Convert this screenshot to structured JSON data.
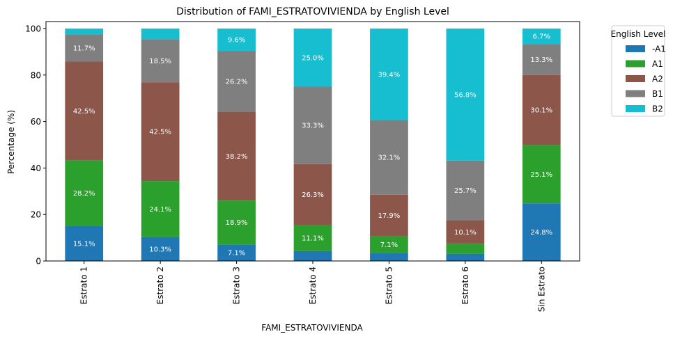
{
  "chart_data": {
    "type": "bar",
    "stacked": true,
    "title": "Distribution of FAMI_ESTRATOVIVIENDA by English Level",
    "xlabel": "FAMI_ESTRATOVIVIENDA",
    "ylabel": "Percentage (%)",
    "ylim": [
      0,
      103
    ],
    "yticks": [
      "0",
      "20",
      "40",
      "60",
      "80",
      "100"
    ],
    "categories": [
      "Estrato 1",
      "Estrato 2",
      "Estrato 3",
      "Estrato 4",
      "Estrato 5",
      "Estrato 6",
      "Sin Estrato"
    ],
    "legend_title": "English Level",
    "legend_position": "outside-right-top",
    "series": [
      {
        "name": "-A1",
        "color": "#1f77b4",
        "values": [
          15.1,
          10.3,
          7.1,
          4.3,
          3.5,
          3.1,
          24.8
        ],
        "labels": [
          "15.1%",
          "10.3%",
          "7.1%",
          "",
          "",
          "",
          "24.8%"
        ]
      },
      {
        "name": "A1",
        "color": "#2ca02c",
        "values": [
          28.2,
          24.1,
          18.9,
          11.1,
          7.1,
          4.3,
          25.1
        ],
        "labels": [
          "28.2%",
          "24.1%",
          "18.9%",
          "11.1%",
          "7.1%",
          "",
          "25.1%"
        ]
      },
      {
        "name": "A2",
        "color": "#8c564b",
        "values": [
          42.5,
          42.5,
          38.2,
          26.3,
          17.9,
          10.1,
          30.1
        ],
        "labels": [
          "42.5%",
          "42.5%",
          "38.2%",
          "26.3%",
          "17.9%",
          "10.1%",
          "30.1%"
        ]
      },
      {
        "name": "B1",
        "color": "#7f7f7f",
        "values": [
          11.7,
          18.5,
          26.2,
          33.3,
          32.1,
          25.7,
          13.3
        ],
        "labels": [
          "11.7%",
          "18.5%",
          "26.2%",
          "33.3%",
          "32.1%",
          "25.7%",
          "13.3%"
        ]
      },
      {
        "name": "B2",
        "color": "#17becf",
        "values": [
          2.5,
          4.6,
          9.6,
          25.0,
          39.4,
          56.8,
          6.7
        ],
        "labels": [
          "",
          "",
          "9.6%",
          "25.0%",
          "39.4%",
          "56.8%",
          "6.7%"
        ]
      }
    ]
  }
}
